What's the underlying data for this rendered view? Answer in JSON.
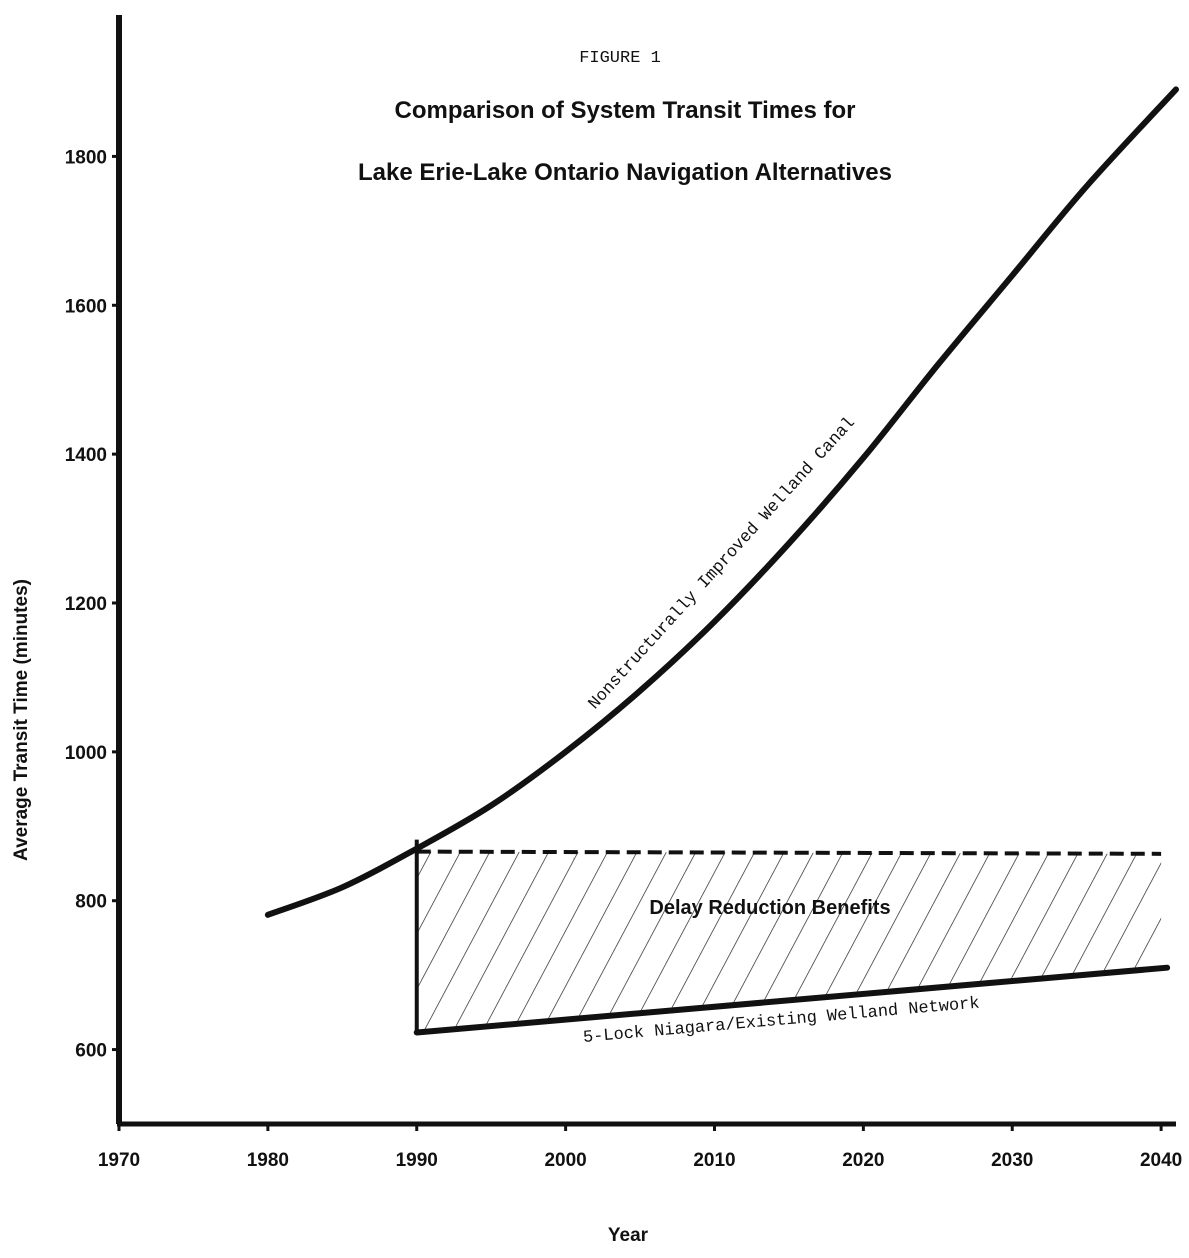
{
  "figure_label": "FIGURE 1",
  "chart_data": {
    "type": "line",
    "title": "Comparison of System Transit Times for",
    "subtitle": "Lake Erie-Lake Ontario Navigation Alternatives",
    "xlabel": "Year",
    "ylabel": "Average Transit Time (minutes)",
    "xlim": [
      1970,
      2041
    ],
    "ylim": [
      500,
      1990
    ],
    "x_ticks": [
      1970,
      1980,
      1990,
      2000,
      2010,
      2020,
      2030,
      2040
    ],
    "y_ticks": [
      600,
      800,
      1000,
      1200,
      1400,
      1600,
      1800
    ],
    "grid": false,
    "series": [
      {
        "name": "Nonstructurally Improved Welland Canal",
        "style": "solid",
        "x": [
          1980,
          1985,
          1990,
          1995,
          2000,
          2005,
          2010,
          2015,
          2020,
          2025,
          2030,
          2035,
          2041
        ],
        "y": [
          781,
          818,
          870,
          928,
          1000,
          1082,
          1175,
          1280,
          1395,
          1520,
          1640,
          1760,
          1890
        ]
      },
      {
        "name": "5-Lock Niagara/Existing Welland Network",
        "style": "solid",
        "x": [
          1990,
          2040
        ],
        "y": [
          623,
          710
        ]
      },
      {
        "name": "",
        "style": "dashed",
        "x": [
          1990,
          2040
        ],
        "y": [
          866,
          863
        ]
      }
    ],
    "annotations": [
      {
        "text": "Delay Reduction Benefits",
        "x": 2015,
        "y": 790,
        "hatched_region": true
      }
    ]
  }
}
